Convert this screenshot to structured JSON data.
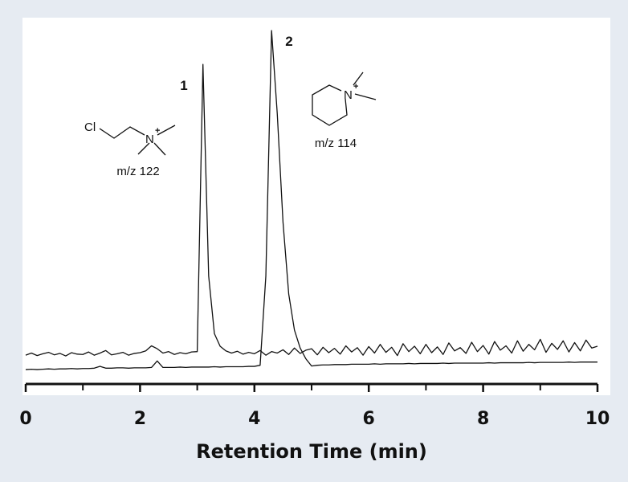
{
  "chart_data": {
    "type": "line",
    "xlabel": "Retention Time (min)",
    "x": [
      0,
      0.1,
      0.2,
      0.3,
      0.4,
      0.5,
      0.6,
      0.7,
      0.8,
      0.9,
      1,
      1.1,
      1.2,
      1.3,
      1.4,
      1.5,
      1.6,
      1.7,
      1.8,
      1.9,
      2,
      2.1,
      2.2,
      2.3,
      2.4,
      2.5,
      2.6,
      2.7,
      2.8,
      2.9,
      3,
      3.1,
      3.2,
      3.3,
      3.4,
      3.5,
      3.6,
      3.7,
      3.8,
      3.9,
      4,
      4.1,
      4.2,
      4.3,
      4.4,
      4.5,
      4.6,
      4.7,
      4.8,
      4.9,
      5,
      5.1,
      5.2,
      5.3,
      5.4,
      5.5,
      5.6,
      5.7,
      5.8,
      5.9,
      6,
      6.1,
      6.2,
      6.3,
      6.4,
      6.5,
      6.6,
      6.7,
      6.8,
      6.9,
      7,
      7.1,
      7.2,
      7.3,
      7.4,
      7.5,
      7.6,
      7.7,
      7.8,
      7.9,
      8,
      8.1,
      8.2,
      8.3,
      8.4,
      8.5,
      8.6,
      8.7,
      8.8,
      8.9,
      9,
      9.1,
      9.2,
      9.3,
      9.4,
      9.5,
      9.6,
      9.7,
      9.8,
      9.9,
      10
    ],
    "series": [
      {
        "color": "#111111",
        "values": [
          8.0,
          8.6,
          7.9,
          8.4,
          8.8,
          8.1,
          8.5,
          7.8,
          8.7,
          8.3,
          8.2,
          8.9,
          8.0,
          8.6,
          9.3,
          8.1,
          8.4,
          8.8,
          8.0,
          8.5,
          8.7,
          9.2,
          10.6,
          9.8,
          8.6,
          9.0,
          8.2,
          8.7,
          8.4,
          8.9,
          9.0,
          88.8,
          30.0,
          14.0,
          10.5,
          9.2,
          8.6,
          9.1,
          8.3,
          8.8,
          8.4,
          9.3,
          8.0,
          9.0,
          8.6,
          9.5,
          8.2,
          10.0,
          8.5,
          9.4,
          9.8,
          8.1,
          10.2,
          8.7,
          9.9,
          8.3,
          10.6,
          8.9,
          10.1,
          8.0,
          10.4,
          8.6,
          11.0,
          8.8,
          10.2,
          7.9,
          11.2,
          9.0,
          10.5,
          8.4,
          11.0,
          8.7,
          10.3,
          8.2,
          11.4,
          9.2,
          10.1,
          8.5,
          11.6,
          9.0,
          10.7,
          8.3,
          11.8,
          9.4,
          10.6,
          8.6,
          12.0,
          9.1,
          11.0,
          9.5,
          12.4,
          8.8,
          11.3,
          9.6,
          12.0,
          8.9,
          11.5,
          9.2,
          12.2,
          10.0,
          10.5
        ]
      },
      {
        "color": "#111111",
        "values": [
          4.0,
          4.1,
          4.0,
          4.1,
          4.2,
          4.1,
          4.2,
          4.2,
          4.3,
          4.2,
          4.3,
          4.3,
          4.4,
          4.9,
          4.4,
          4.4,
          4.5,
          4.5,
          4.4,
          4.5,
          4.5,
          4.5,
          4.6,
          6.4,
          4.6,
          4.6,
          4.6,
          4.7,
          4.6,
          4.7,
          4.7,
          4.7,
          4.7,
          4.8,
          4.7,
          4.8,
          4.8,
          4.8,
          4.8,
          4.9,
          4.9,
          5.2,
          30.0,
          98.2,
          75.0,
          45.0,
          25.0,
          15.0,
          10.0,
          7.0,
          5.0,
          5.2,
          5.3,
          5.3,
          5.4,
          5.4,
          5.4,
          5.5,
          5.5,
          5.5,
          5.5,
          5.6,
          5.5,
          5.6,
          5.6,
          5.6,
          5.6,
          5.7,
          5.6,
          5.7,
          5.7,
          5.7,
          5.7,
          5.8,
          5.7,
          5.8,
          5.8,
          5.8,
          5.8,
          5.8,
          5.8,
          5.9,
          5.8,
          5.9,
          5.9,
          5.9,
          5.9,
          5.9,
          6.0,
          5.9,
          6.0,
          6.0,
          6.0,
          6.0,
          6.0,
          6.1,
          6.0,
          6.1,
          6.1,
          6.1,
          6.1
        ]
      }
    ],
    "xlim": [
      0,
      10
    ],
    "xticks": [
      0,
      2,
      4,
      6,
      8,
      10
    ],
    "xminorticks": [
      1,
      3,
      5,
      7,
      9
    ],
    "ylim": [
      0,
      100
    ],
    "peak_labels": [
      "1",
      "2"
    ],
    "structures": [
      {
        "atoms": [
          "Cl",
          "N",
          "+"
        ],
        "label": "m/z 122"
      },
      {
        "atoms": [
          "N",
          "+"
        ],
        "label": "m/z 114"
      }
    ]
  }
}
